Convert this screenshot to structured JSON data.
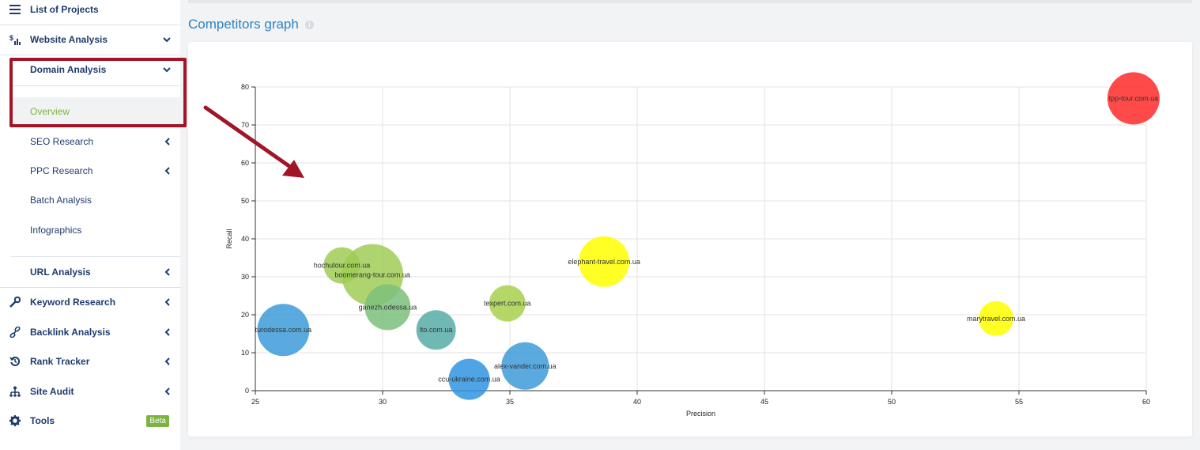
{
  "sidebar": {
    "list_projects": "List of Projects",
    "website_analysis": "Website Analysis",
    "domain_analysis": "Domain Analysis",
    "overview": "Overview",
    "seo_research": "SEO Research",
    "ppc_research": "PPC Research",
    "batch_analysis": "Batch Analysis",
    "infographics": "Infographics",
    "url_analysis": "URL Analysis",
    "keyword_research": "Keyword Research",
    "backlink_analysis": "Backlink Analysis",
    "rank_tracker": "Rank Tracker",
    "site_audit": "Site Audit",
    "tools": "Tools",
    "tools_badge": "Beta"
  },
  "colors": {
    "nav_text": "#1e3b6e",
    "active": "#7cb342",
    "title": "#2b82c2",
    "highlight": "#a11526"
  },
  "main": {
    "title": "Competitors graph",
    "info_icon": "i"
  },
  "chart_data": {
    "type": "scatter",
    "xlabel": "Precision",
    "ylabel": "Recall",
    "xlim": [
      25,
      60
    ],
    "ylim": [
      0,
      80
    ],
    "xticks": [
      25,
      30,
      35,
      40,
      45,
      50,
      55,
      60
    ],
    "yticks": [
      0,
      10,
      20,
      30,
      40,
      50,
      60,
      70,
      80
    ],
    "grid": true,
    "points": [
      {
        "label": "tpp-tour.com.ua",
        "x": 59.5,
        "y": 77,
        "r": 33,
        "color": "#ff2a2a"
      },
      {
        "label": "hochutour.com.ua",
        "x": 28.4,
        "y": 33,
        "r": 23,
        "color": "#9fcd56"
      },
      {
        "label": "boomerang-tour.com.ua",
        "x": 29.6,
        "y": 30.5,
        "r": 39,
        "color": "#9fcd56"
      },
      {
        "label": "ganezh.odessa.ua",
        "x": 30.2,
        "y": 22,
        "r": 29,
        "color": "#7dbf7b"
      },
      {
        "label": "turodessa.com.ua",
        "x": 26.1,
        "y": 16,
        "r": 33,
        "color": "#3d9ad9"
      },
      {
        "label": "lto.com.ua",
        "x": 32.1,
        "y": 16,
        "r": 25,
        "color": "#56aca7"
      },
      {
        "label": "texpert.com.ua",
        "x": 34.9,
        "y": 23,
        "r": 23,
        "color": "#a8d04d"
      },
      {
        "label": "alex-vander.com.ua",
        "x": 35.6,
        "y": 6.5,
        "r": 30,
        "color": "#3d9ad9"
      },
      {
        "label": "ccu-ukraine.com.ua",
        "x": 33.4,
        "y": 3,
        "r": 26,
        "color": "#2f94e0"
      },
      {
        "label": "elephant-travel.com.ua",
        "x": 38.7,
        "y": 34,
        "r": 32,
        "color": "#ffff00"
      },
      {
        "label": "marytravel.com.ua",
        "x": 54.1,
        "y": 19,
        "r": 22,
        "color": "#ffff00"
      }
    ]
  }
}
